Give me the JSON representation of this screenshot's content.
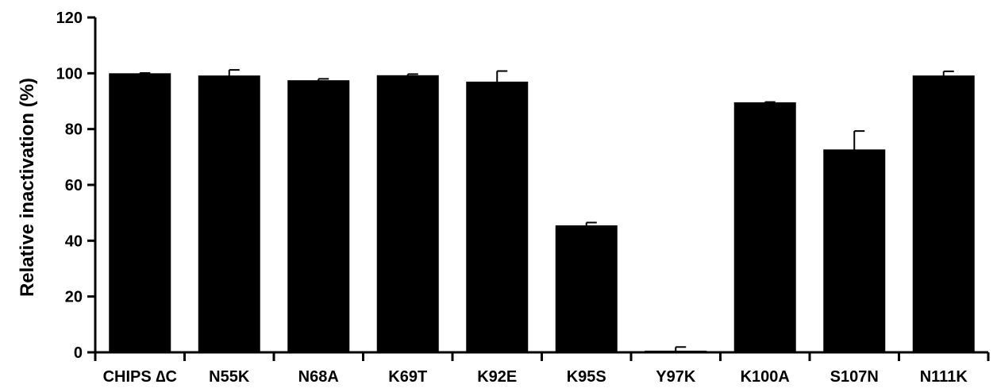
{
  "chart_data": {
    "type": "bar",
    "title": "",
    "xlabel": "",
    "ylabel": "Relative inactivation (%)",
    "ylim": [
      0,
      120
    ],
    "yticks": [
      0,
      20,
      40,
      60,
      80,
      100,
      120
    ],
    "grid": false,
    "legend": "none",
    "categories": [
      "CHIPS ∆C",
      "N55K",
      "N68A",
      "K69T",
      "K92E",
      "K95S",
      "Y97K",
      "K100A",
      "S107N",
      "N111K"
    ],
    "values": [
      100,
      99.2,
      97.5,
      99.3,
      97.0,
      45.5,
      0.6,
      89.6,
      72.7,
      99.2
    ],
    "errors": [
      0.1,
      2.0,
      0.5,
      0.4,
      3.8,
      1.0,
      1.3,
      0.1,
      6.6,
      1.5
    ],
    "bar_color": "#000000"
  }
}
